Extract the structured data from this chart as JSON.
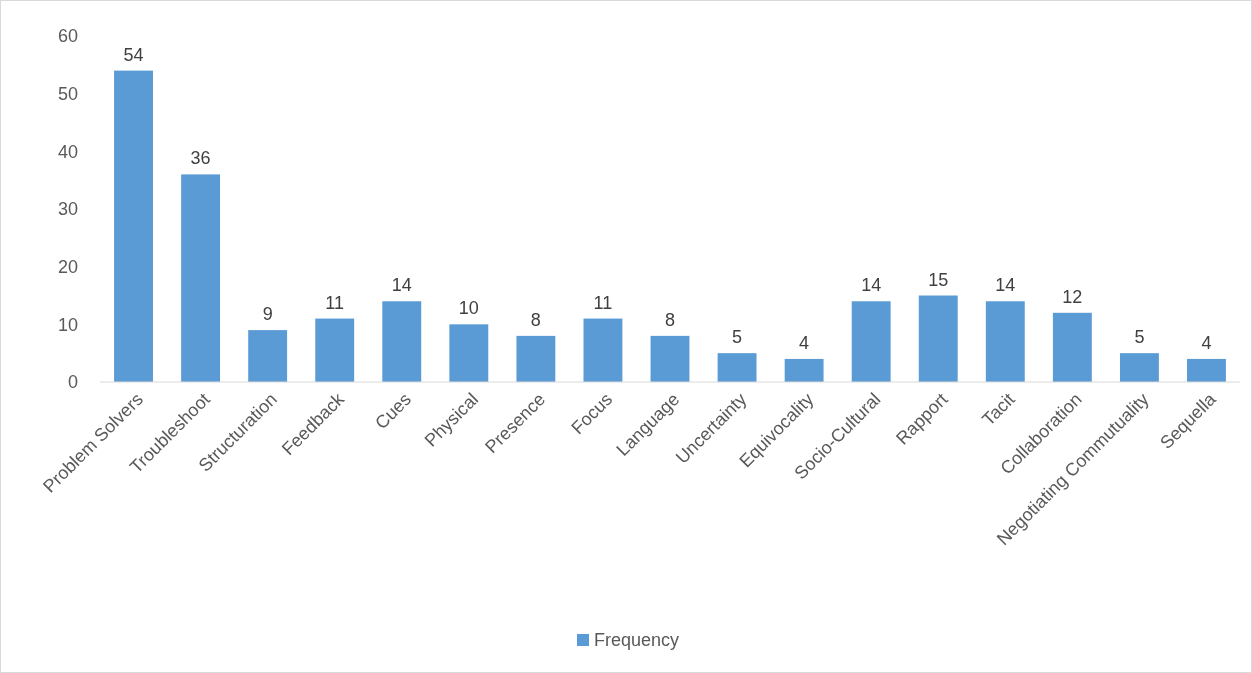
{
  "chart_data": {
    "type": "bar",
    "categories": [
      "Problem Solvers",
      "Troubleshoot",
      "Structuration",
      "Feedback",
      "Cues",
      "Physical",
      "Presence",
      "Focus",
      "Language",
      "Uncertainty",
      "Equivocality",
      "Socio-Cultural",
      "Rapport",
      "Tacit",
      "Collaboration",
      "Negotiating Commutuality",
      "Sequella"
    ],
    "series": [
      {
        "name": "Frequency",
        "color": "#5b9bd5",
        "values": [
          54,
          36,
          9,
          11,
          14,
          10,
          8,
          11,
          8,
          5,
          4,
          14,
          15,
          14,
          12,
          5,
          4
        ]
      }
    ],
    "ylim": [
      0,
      60
    ],
    "yticks": [
      0,
      10,
      20,
      30,
      40,
      50,
      60
    ],
    "grid": false,
    "legend": "bottom",
    "data_labels": true
  }
}
